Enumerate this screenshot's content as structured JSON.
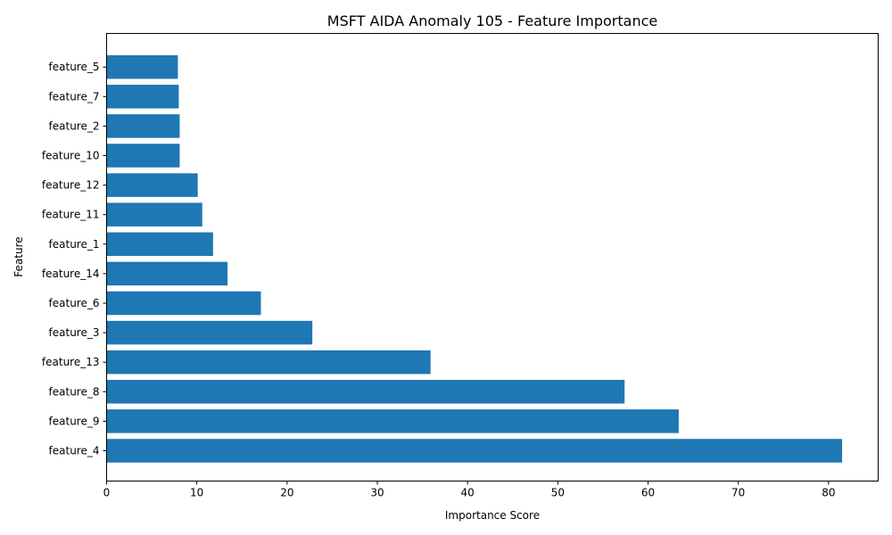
{
  "chart_data": {
    "type": "bar",
    "orientation": "horizontal",
    "title": "MSFT AIDA Anomaly 105 - Feature Importance",
    "xlabel": "Importance Score",
    "ylabel": "Feature",
    "xlim": [
      0,
      85.5
    ],
    "xticks": [
      0,
      10,
      20,
      30,
      40,
      50,
      60,
      70,
      80
    ],
    "grid": false,
    "bar_color": "#1f77b4",
    "categories": [
      "feature_4",
      "feature_9",
      "feature_8",
      "feature_13",
      "feature_3",
      "feature_6",
      "feature_14",
      "feature_1",
      "feature_11",
      "feature_12",
      "feature_10",
      "feature_2",
      "feature_7",
      "feature_5"
    ],
    "values": [
      81.5,
      63.4,
      57.4,
      35.9,
      22.8,
      17.1,
      13.4,
      11.8,
      10.6,
      10.1,
      8.1,
      8.1,
      8.0,
      7.9
    ]
  }
}
